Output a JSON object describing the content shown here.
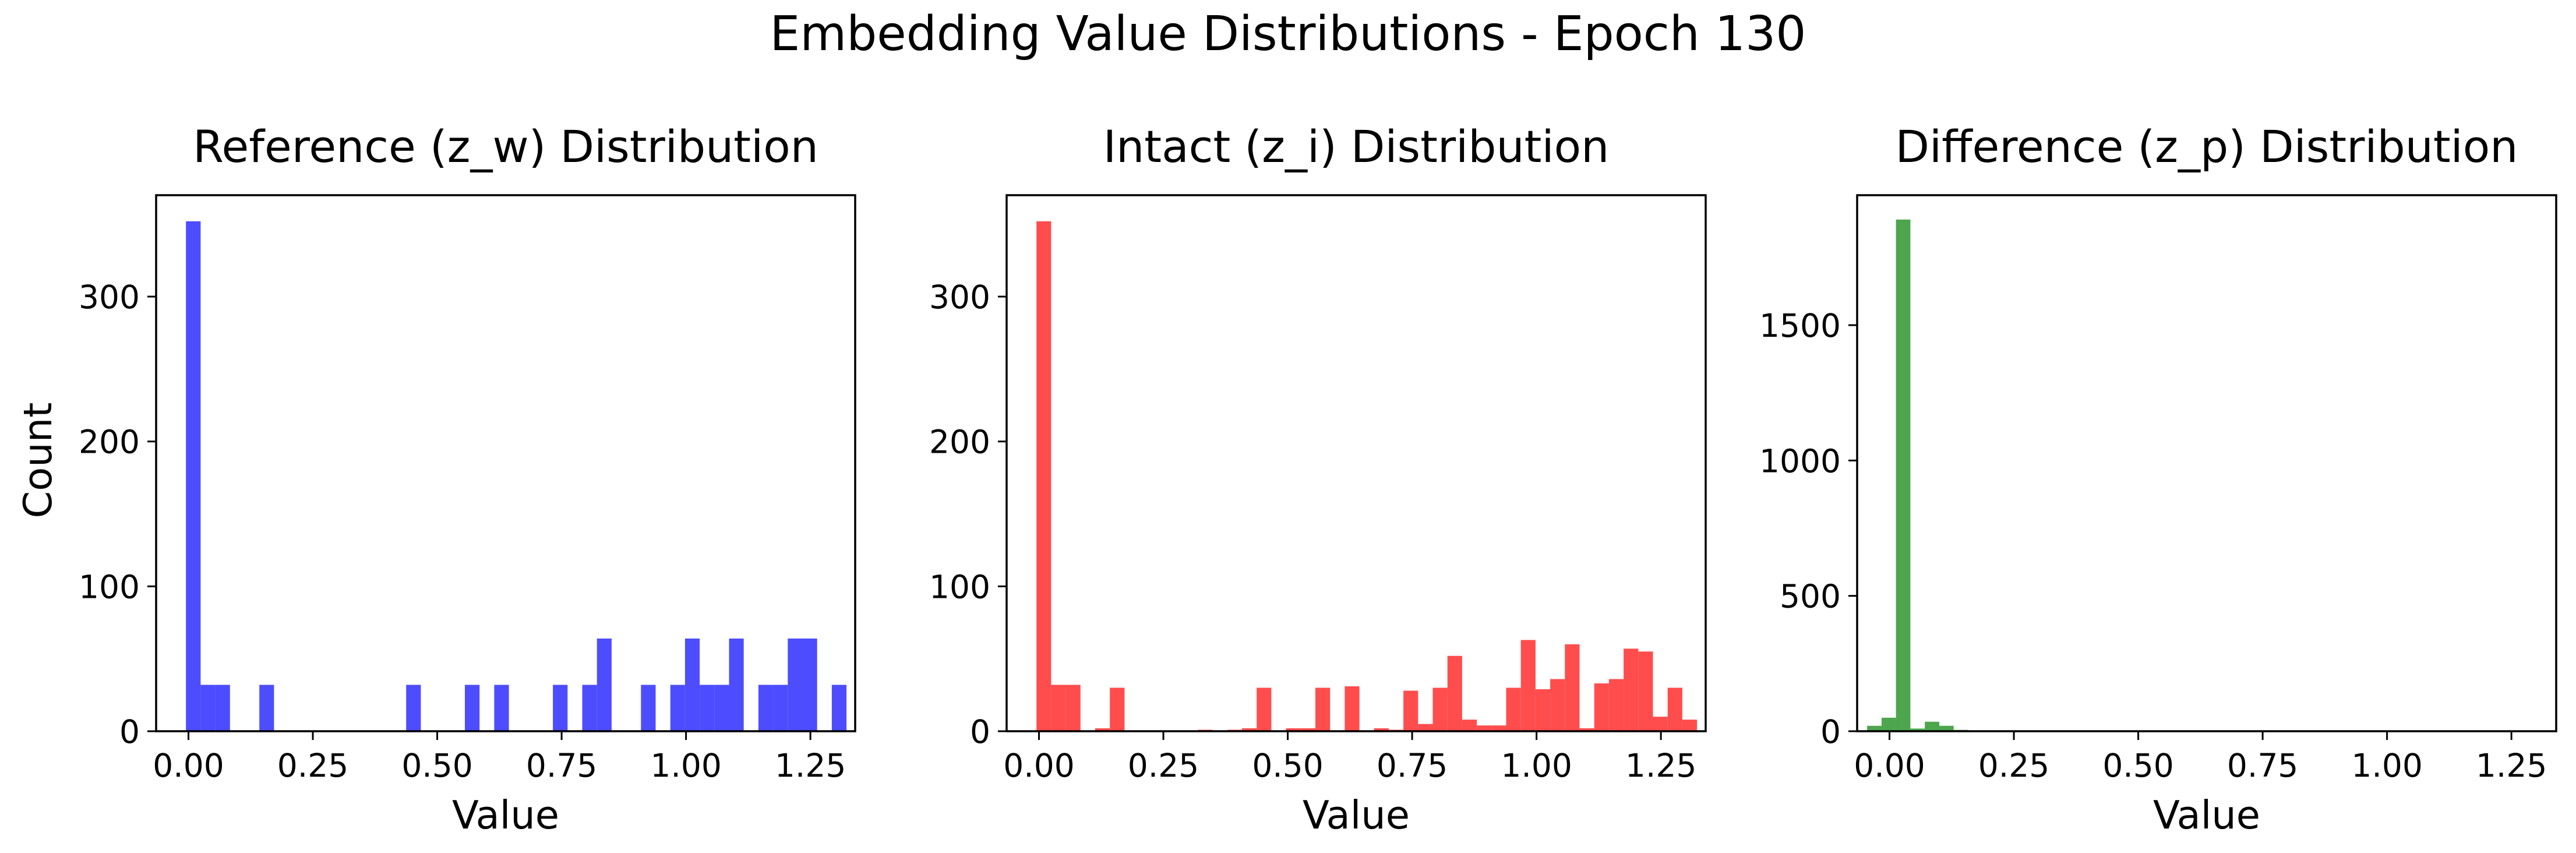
{
  "figure": {
    "title": "Embedding Value Distributions - Epoch 130"
  },
  "chart_data": [
    {
      "type": "bar",
      "title": "Reference (z_w) Distribution",
      "xlabel": "Value",
      "ylabel": "Count",
      "color": "#4d4dff",
      "xlim": [
        -0.065,
        1.34
      ],
      "ylim": [
        0,
        370
      ],
      "xticks": [
        0.0,
        0.25,
        0.5,
        0.75,
        1.0,
        1.25
      ],
      "xtick_labels": [
        "0.00",
        "0.25",
        "0.50",
        "0.75",
        "1.00",
        "1.25"
      ],
      "yticks": [
        0,
        100,
        200,
        300
      ],
      "bin_start": -0.005,
      "bin_width": 0.0295,
      "counts": [
        352,
        32,
        32,
        0,
        0,
        32,
        0,
        0,
        0,
        0,
        0,
        0,
        0,
        0,
        0,
        32,
        0,
        0,
        0,
        32,
        0,
        32,
        0,
        0,
        0,
        32,
        0,
        32,
        64,
        0,
        0,
        32,
        0,
        32,
        64,
        32,
        32,
        64,
        0,
        32,
        32,
        64,
        64,
        0,
        32
      ]
    },
    {
      "type": "bar",
      "title": "Intact (z_i) Distribution",
      "xlabel": "Value",
      "ylabel": "",
      "color": "#ff4d4d",
      "xlim": [
        -0.065,
        1.34
      ],
      "ylim": [
        0,
        370
      ],
      "xticks": [
        0.0,
        0.25,
        0.5,
        0.75,
        1.0,
        1.25
      ],
      "xtick_labels": [
        "0.00",
        "0.25",
        "0.50",
        "0.75",
        "1.00",
        "1.25"
      ],
      "yticks": [
        0,
        100,
        200,
        300
      ],
      "bin_start": -0.005,
      "bin_width": 0.0295,
      "counts": [
        352,
        32,
        32,
        0,
        2,
        30,
        0,
        0,
        0,
        0,
        0,
        1,
        0,
        1,
        2,
        30,
        0,
        2,
        2,
        30,
        0,
        31,
        0,
        2,
        1,
        28,
        5,
        30,
        52,
        8,
        4,
        4,
        30,
        63,
        29,
        36,
        60,
        2,
        33,
        36,
        57,
        55,
        10,
        30,
        8
      ]
    },
    {
      "type": "bar",
      "title": "Difference (z_p) Distribution",
      "xlabel": "Value",
      "ylabel": "",
      "color": "#4da64d",
      "xlim": [
        -0.065,
        1.34
      ],
      "ylim": [
        0,
        1980
      ],
      "xticks": [
        0.0,
        0.25,
        0.5,
        0.75,
        1.0,
        1.25
      ],
      "xtick_labels": [
        "0.00",
        "0.25",
        "0.50",
        "0.75",
        "1.00",
        "1.25"
      ],
      "yticks": [
        0,
        500,
        1000,
        1500
      ],
      "bin_start": -0.045,
      "bin_width": 0.029,
      "counts": [
        20,
        50,
        1890,
        10,
        35,
        20,
        5,
        0,
        0,
        0,
        0,
        0,
        0,
        0,
        0,
        0,
        0,
        0,
        0,
        0,
        0,
        0,
        0,
        0,
        0,
        0,
        0,
        0,
        0,
        0,
        0,
        0,
        0,
        0,
        0,
        0,
        0,
        0,
        0,
        0,
        0,
        0,
        0,
        0,
        0
      ]
    }
  ]
}
